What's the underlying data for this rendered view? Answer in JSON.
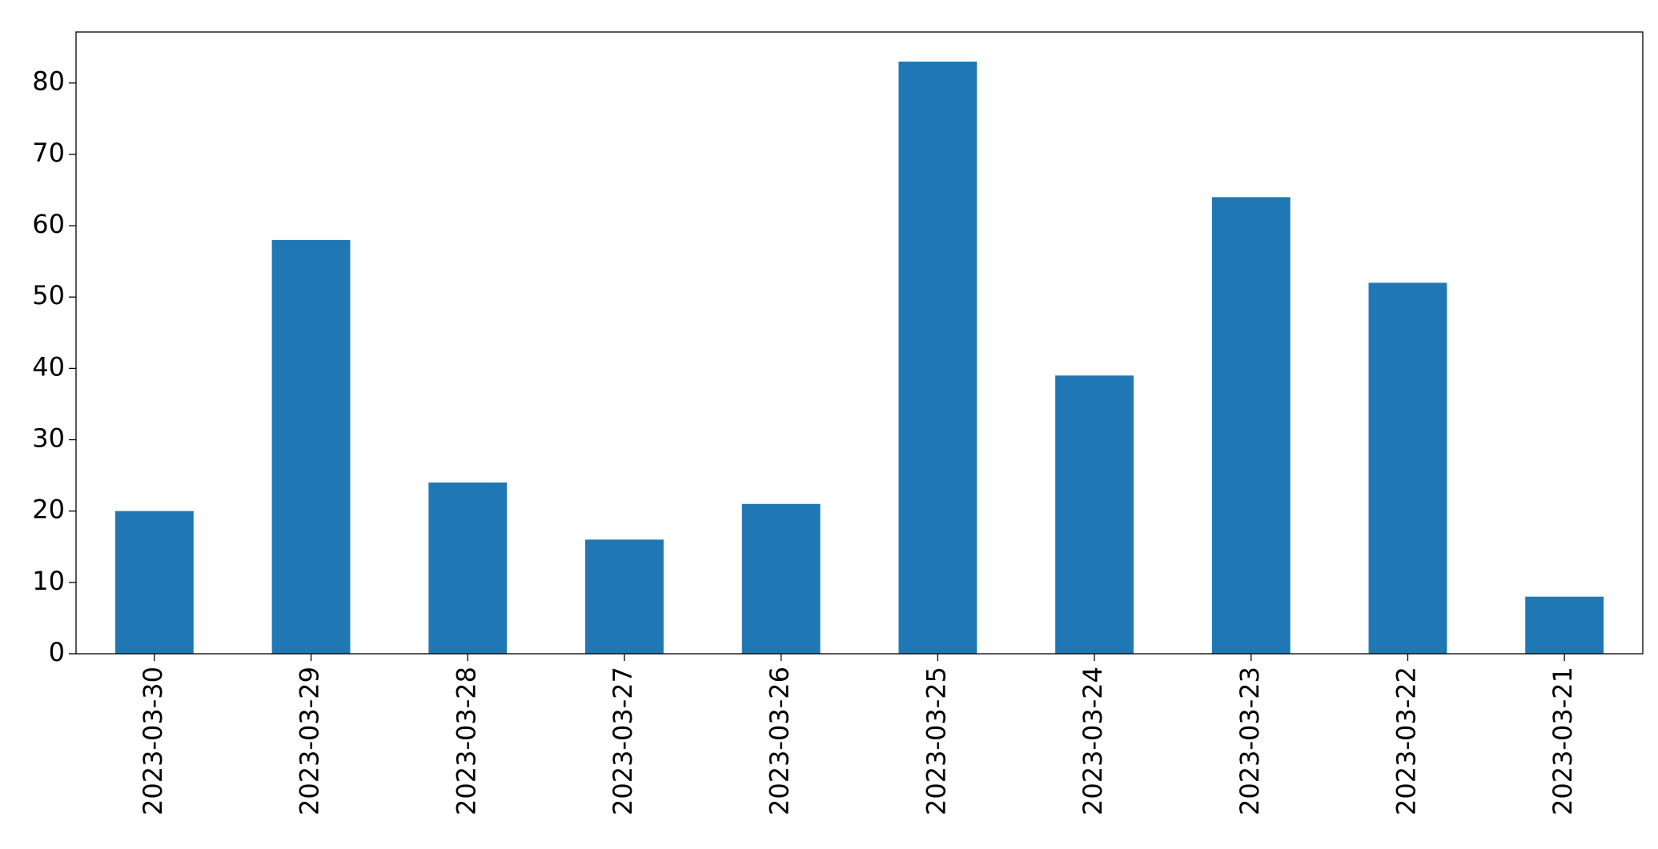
{
  "chart_data": {
    "type": "bar",
    "categories": [
      "2023-03-30",
      "2023-03-29",
      "2023-03-28",
      "2023-03-27",
      "2023-03-26",
      "2023-03-25",
      "2023-03-24",
      "2023-03-23",
      "2023-03-22",
      "2023-03-21"
    ],
    "values": [
      20,
      58,
      24,
      16,
      21,
      83,
      39,
      64,
      52,
      8
    ],
    "color": "#1f77b4",
    "ylim": [
      0,
      87.15
    ],
    "yticks": [
      0,
      10,
      20,
      30,
      40,
      50,
      60,
      70,
      80
    ],
    "grid": false
  }
}
